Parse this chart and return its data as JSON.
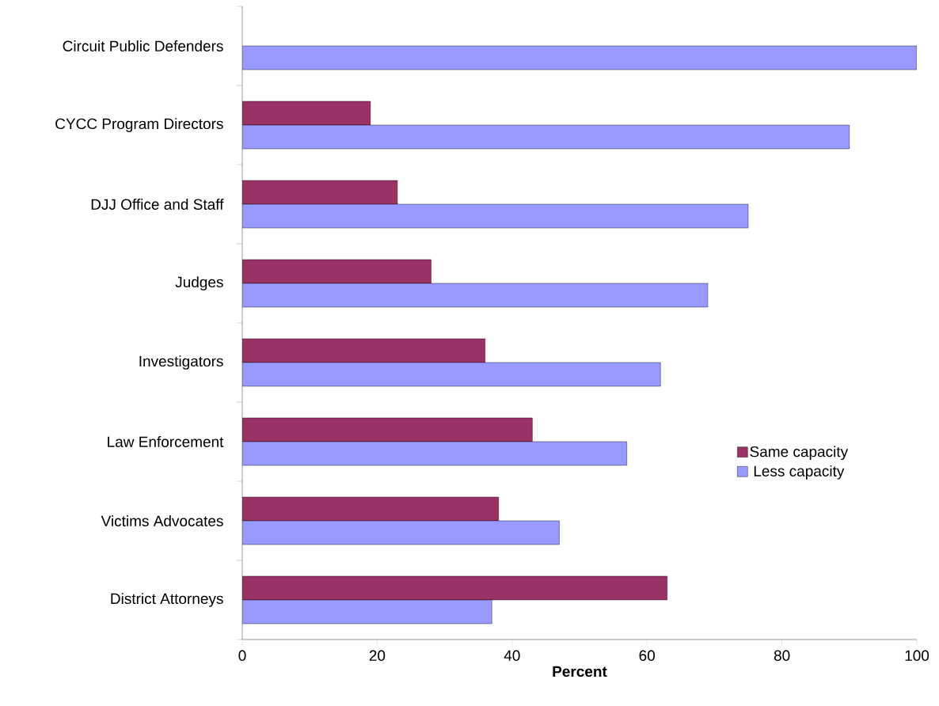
{
  "chart_data": {
    "type": "bar",
    "orientation": "horizontal",
    "xlabel": "Percent",
    "categories": [
      "Circuit Public Defenders",
      "CYCC Program Directors",
      "DJJ Office and Staff",
      "Judges",
      "Investigators",
      "Law Enforcement",
      "Victims Advocates",
      "District Attorneys"
    ],
    "series": [
      {
        "name": "Same capacity",
        "color": "#993366",
        "values": [
          null,
          19,
          23,
          28,
          36,
          43,
          38,
          63
        ]
      },
      {
        "name": "Less capacity",
        "color": "#9999ff",
        "values": [
          100,
          90,
          75,
          69,
          62,
          57,
          47,
          37
        ]
      }
    ],
    "xlim": [
      0,
      100
    ],
    "xticks": [
      0,
      20,
      40,
      60,
      80,
      100
    ],
    "grid": false,
    "legend": "right"
  }
}
